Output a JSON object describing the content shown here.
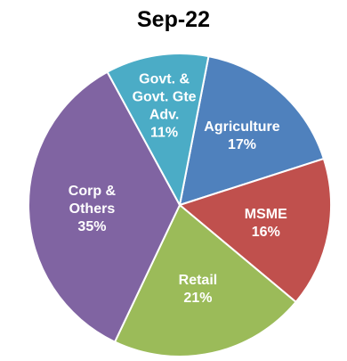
{
  "chart_data": {
    "type": "pie",
    "title": "Sep-22",
    "slices": [
      {
        "label_lines": [
          "Agriculture"
        ],
        "value": 17,
        "value_label": "17%",
        "color": "#4f81bd"
      },
      {
        "label_lines": [
          "MSME"
        ],
        "value": 16,
        "value_label": "16%",
        "color": "#c0504d"
      },
      {
        "label_lines": [
          "Retail"
        ],
        "value": 21,
        "value_label": "21%",
        "color": "#9bbb59"
      },
      {
        "label_lines": [
          "Corp &",
          "Others"
        ],
        "value": 35,
        "value_label": "35%",
        "color": "#8064a2"
      },
      {
        "label_lines": [
          "Govt. &",
          "Govt. Gte",
          "Adv."
        ],
        "value": 11,
        "value_label": "11%",
        "color": "#4bacc6"
      }
    ]
  }
}
